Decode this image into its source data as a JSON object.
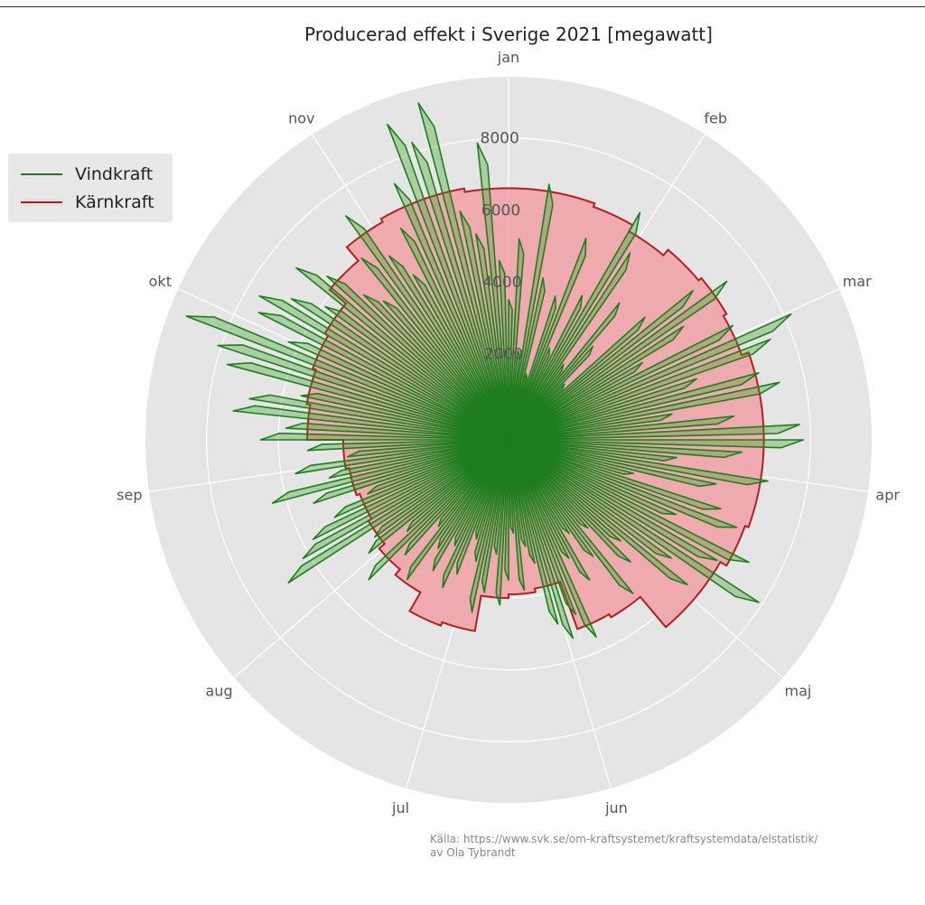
{
  "chart_data": {
    "type": "polar-line",
    "title": "Producerad effekt i Sverige 2021 [megawatt]",
    "theta_labels": [
      "jan",
      "feb",
      "mar",
      "apr",
      "maj",
      "jun",
      "jul",
      "aug",
      "sep",
      "okt",
      "nov"
    ],
    "r_ticks": [
      "2000",
      "4000",
      "6000",
      "8000"
    ],
    "r_tick_values": [
      2000,
      4000,
      6000,
      8000
    ],
    "rlim": [
      -400,
      9700
    ],
    "direction": "clockwise",
    "zero_location": "top",
    "grid": true,
    "legend_position": "top-left",
    "series": [
      {
        "name": "Vindkraft",
        "color": "#1e7d1e",
        "values": [
          3500,
          5200,
          2100,
          6800,
          4200,
          1500,
          3800,
          5600,
          2400,
          4100,
          6900,
          5800,
          2200,
          4500,
          3100,
          1800,
          4700,
          6200,
          7100,
          5400,
          3900,
          6600,
          8200,
          7400,
          5100,
          6800,
          7300,
          4200,
          5900,
          7700,
          7800,
          6100,
          4300,
          6900,
          5500,
          3200,
          5800,
          6400,
          4700,
          7100,
          6300,
          7900,
          5200,
          6000,
          3800,
          4400,
          2900,
          5100,
          3600,
          2700,
          4100,
          3300,
          5600,
          4800,
          5400,
          4900,
          3100,
          2600,
          3800,
          2200,
          3500,
          4200,
          2800,
          3900,
          4500,
          3100,
          2500,
          3600,
          4100,
          2900,
          3800,
          3200,
          4400,
          2700,
          3900,
          5100,
          3400,
          4600,
          4200,
          6900,
          6200,
          5700,
          4900,
          3800,
          5300,
          6400,
          4700,
          5600,
          4100,
          5200,
          6500,
          5800,
          7300,
          6900,
          5500,
          7700,
          8100,
          9200,
          6300,
          7400,
          7600,
          6800,
          5900,
          7200,
          6400,
          5300,
          4800,
          6100,
          7300,
          5700,
          4900,
          6200,
          7400,
          9000,
          8300,
          9300,
          6100,
          5400,
          7900,
          4600
        ]
      },
      {
        "name": "Kärnkraft",
        "color": "#b02020",
        "values": [
          6600,
          6600,
          6500,
          6300,
          6500,
          6600,
          6500,
          6700,
          6700,
          6700,
          6700,
          6600,
          6400,
          6400,
          5300,
          5200,
          3800,
          3900,
          4000,
          5000,
          5100,
          4500,
          4300,
          4100,
          4000,
          4100,
          4200,
          5200,
          5300,
          5400,
          5500,
          6100,
          6600,
          6700,
          6700,
          6600
        ]
      }
    ],
    "source": "Källa: https://www.svk.se/om-kraftsystemet/kraftsystemdata/elstatistik/",
    "author": "av Ola Tybrandt"
  }
}
